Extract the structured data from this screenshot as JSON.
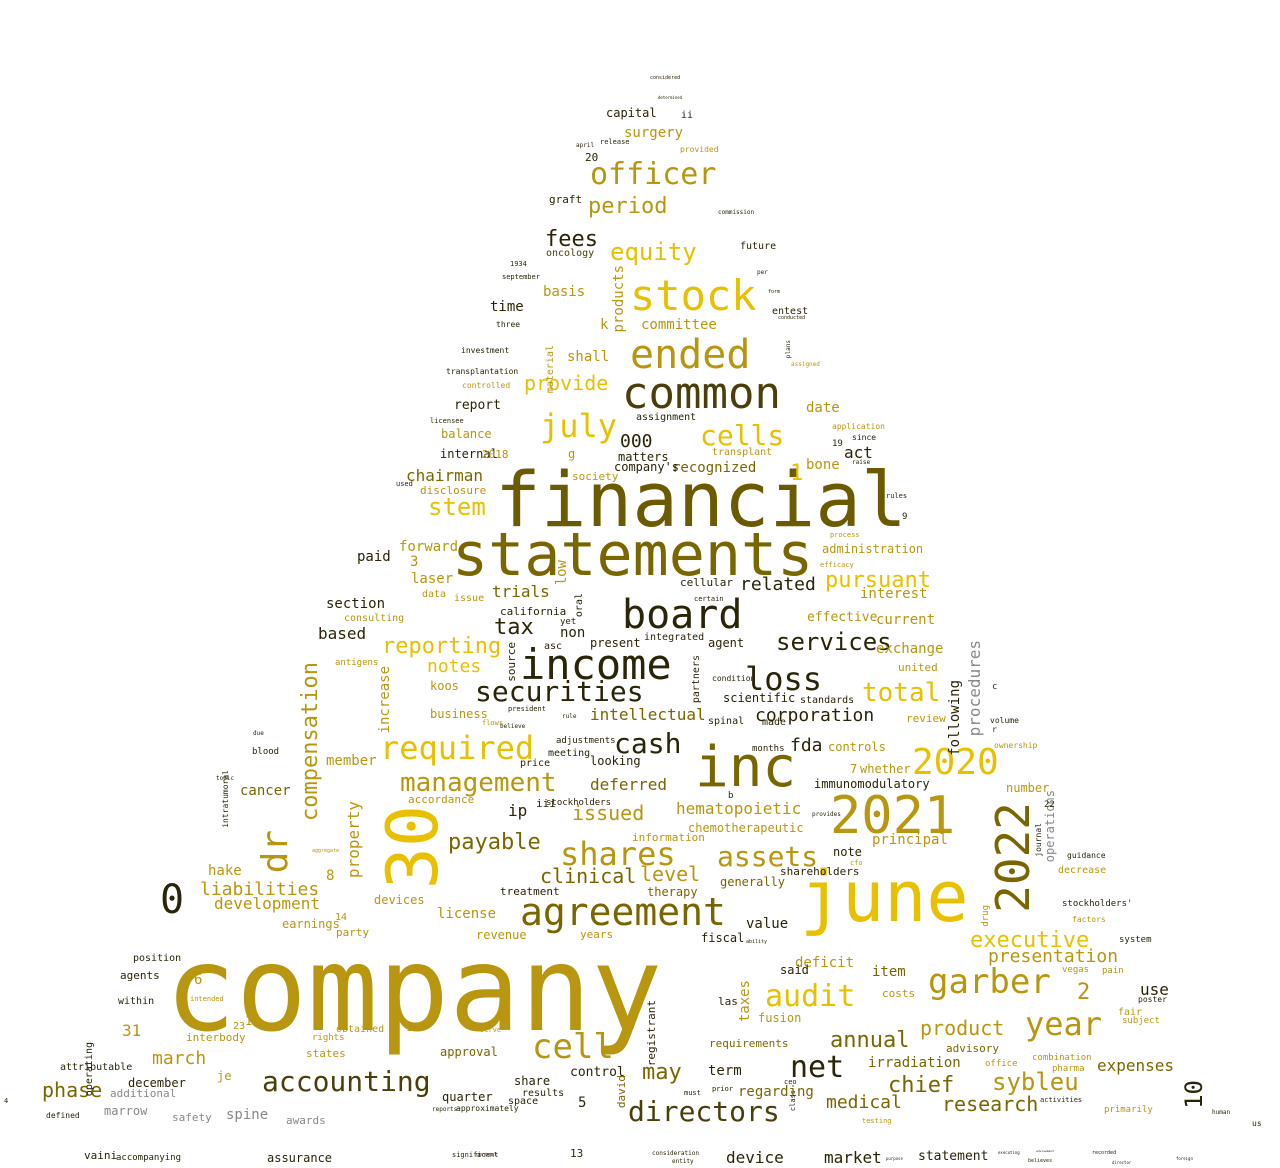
{
  "palette": {
    "gold": "#b8960f",
    "bright_gold": "#e8c000",
    "yellow": "#f2cc10",
    "pale_yellow": "#f5d84a",
    "olive": "#7a6600",
    "dark_olive": "#6b5a00",
    "brown": "#4a3f0a",
    "dark": "#2a2408",
    "black": "#000000",
    "grey": "#888888"
  },
  "words": {
    "company": "company",
    "financial": "financial",
    "statements": "statements",
    "june": "june",
    "inc": "inc",
    "n30": "30",
    "common": "common",
    "income": "income",
    "board": "board",
    "n2021": "2021",
    "n2022": "2022",
    "agreement": "agreement",
    "stock": "stock",
    "ended": "ended",
    "securities": "securities",
    "shares": "shares",
    "garber": "garber",
    "year": "year",
    "accounting": "accounting",
    "cell": "cell",
    "directors": "directors",
    "net": "net",
    "loss": "loss",
    "required": "required",
    "management": "management",
    "officer": "officer",
    "july": "july",
    "cells": "cells",
    "audit": "audit",
    "assets": "assets",
    "dr": "dr",
    "n2020": "2020",
    "sybleu": "sybleu",
    "cash": "cash",
    "compensation": "compensation",
    "n0": "0",
    "n10": "10",
    "total": "total",
    "executive": "executive",
    "services": "services",
    "equity": "equity",
    "period": "period",
    "product": "product",
    "research": "research",
    "chief": "chief",
    "annual": "annual",
    "medical": "medical",
    "stem": "stem",
    "fees": "fees",
    "pursuant": "pursuant",
    "payable": "payable",
    "clinical": "clinical",
    "corporation": "corporation",
    "may": "may",
    "reporting": "reporting",
    "presentation": "presentation",
    "phase": "phase",
    "tax": "tax",
    "march": "march",
    "issued": "issued",
    "liabilities": "liabilities",
    "level": "level",
    "provide": "provide",
    "related": "related",
    "hematopoietic": "hematopoietic",
    "development": "development",
    "notes": "notes",
    "trials": "trials",
    "intellectual": "intellectual",
    "deferred": "deferred",
    "expenses": "expenses",
    "procedures": "procedures",
    "property": "property",
    "exchange": "exchange",
    "fda": "fda",
    "license": "license",
    "n2": "2",
    "n31": "31",
    "use": "use",
    "interest": "interest",
    "principal": "principal",
    "irradiation": "irradiation",
    "item": "item",
    "deficit": "deficit",
    "spine": "spine",
    "shall": "shall",
    "committee": "committee",
    "basis": "basis",
    "products": "products",
    "k": "k",
    "section": "section",
    "based": "based",
    "paid": "paid",
    "chairman": "chairman",
    "ooo": "000",
    "act": "act",
    "date": "date",
    "recognized": "recognized",
    "bone": "bone",
    "n1": "1",
    "report": "report",
    "balance": "balance",
    "internal": "internal",
    "matters": "matters",
    "forward": "forward",
    "laser": "laser",
    "low": "low",
    "increase": "increase",
    "koos": "koos",
    "business": "business",
    "member": "member",
    "cancer": "cancer",
    "hake": "hake",
    "n8": "8",
    "n3": "3",
    "n6": "6",
    "n5": "5",
    "time": "time",
    "surgery": "surgery",
    "capital": "capital",
    "graft": "graft",
    "oncology": "oncology",
    "future": "future",
    "entest": "entest",
    "assignment": "assignment",
    "current": "current",
    "effective": "effective",
    "administration": "administration",
    "cellular": "cellular",
    "immunomodulatory": "immunomodulatory",
    "chemotherapeutic": "chemotherapeutic",
    "therapy": "therapy",
    "generally": "generally",
    "shareholders": "shareholders",
    "note": "note",
    "value": "value",
    "said": "said",
    "fusion": "fusion",
    "requirements": "requirements",
    "advisory": "advisory",
    "regarding": "regarding",
    "term": "term",
    "control": "control",
    "david": "david",
    "quarter": "quarter",
    "approval": "approval",
    "marrow": "marrow",
    "december": "december",
    "additional": "additional",
    "operating": "operating",
    "attributable": "attributable",
    "agents": "agents",
    "within": "within",
    "position": "position",
    "n15": "15",
    "interbody": "interbody",
    "states": "states",
    "awards": "awards",
    "safety": "safety",
    "device": "device",
    "market": "market",
    "statement": "statement",
    "assurance": "assurance",
    "vaini": "vaini",
    "accompanying": "accompanying",
    "n13": "13",
    "taxes": "taxes",
    "registrant": "registrant",
    "las": "las",
    "fiscal": "fiscal",
    "costs": "costs",
    "united": "united",
    "review": "review",
    "following": "following",
    "operations": "operations",
    "number": "number",
    "controls": "controls",
    "whether": "whether",
    "n7": "7",
    "made": "made",
    "months": "months",
    "scientific": "scientific",
    "standards": "standards",
    "agent": "agent",
    "partners": "partners",
    "spinal": "spinal",
    "condition": "condition",
    "looking": "looking",
    "meeting": "meeting",
    "adjustments": "adjustments",
    "price": "price",
    "stockholders": "stockholders",
    "accordance": "accordance",
    "information": "information",
    "ip": "ip",
    "iii": "iii",
    "treatment": "treatment",
    "devices": "devices",
    "earnings": "earnings",
    "party": "party",
    "revenue": "revenue",
    "years": "years",
    "share": "share",
    "results": "results",
    "space": "space",
    "source": "source",
    "present": "present",
    "integrated": "integrated",
    "non": "non",
    "asc": "asc",
    "california": "california",
    "oral": "oral",
    "yet": "yet",
    "disclosure": "disclosure",
    "company_s": "company's",
    "society": "society",
    "g": "g",
    "transplant": "transplant",
    "n2018": "2018",
    "data": "data",
    "issue": "issue",
    "consulting": "consulting",
    "antigens": "antigens",
    "obtained": "obtained",
    "rights": "rights",
    "je": "je",
    "n23": "23",
    "n12": "12",
    "n14": "14",
    "n9": "9",
    "n19": "19",
    "n22": "22",
    "n20": "20",
    "ii": "ii",
    "c": "c",
    "b": "b",
    "r": "r",
    "n4": "4",
    "us": "us",
    "system": "system",
    "poster": "poster",
    "guidance": "guidance",
    "decrease": "decrease",
    "factors": "factors",
    "fair": "fair",
    "subject": "subject",
    "primarily": "primarily",
    "pain": "pain",
    "vegas": "vegas",
    "combination": "combination",
    "office": "office",
    "volume": "volume",
    "ownership": "ownership",
    "journal": "journal",
    "drug": "drug",
    "stockholders_": "stockholders'",
    "pharma": "pharma",
    "activities": "activities",
    "human": "human",
    "three": "three",
    "september": "september",
    "n1934": "1934",
    "investment": "investment",
    "transplantation": "transplantation",
    "controlled": "controlled",
    "licensee": "licensee",
    "used": "used",
    "material": "material",
    "application": "application",
    "since": "since",
    "raise": "raise",
    "rules": "rules",
    "provided": "provided",
    "release": "release",
    "april": "april",
    "commission": "commission",
    "per": "per",
    "form": "form",
    "conducted": "conducted",
    "plans": "plans",
    "assigned": "assigned",
    "considered": "considered",
    "determined": "determined",
    "significant": "significant",
    "topic": "topic",
    "blood": "blood",
    "due": "due",
    "intratumoral": "intratumoral",
    "defined": "defined",
    "general": "general",
    "consideration": "consideration",
    "entity": "entity",
    "purpose": "purpose",
    "executing": "executing",
    "believes": "believes",
    "recorded": "recorded",
    "director": "director",
    "foreign": "foreign",
    "advisement": "advisement",
    "ceo": "ceo",
    "class": "class",
    "must": "must",
    "prior": "prior",
    "ability": "ability",
    "process": "process",
    "efficacy": "efficacy",
    "certain": "certain",
    "president": "president",
    "rule": "rule",
    "believe": "believe",
    "provides": "provides",
    "cfo": "cfo",
    "testing": "testing",
    "reports": "reports",
    "approximately": "approximately",
    "intended": "intended",
    "aggregate": "aggregate",
    "flows": "flows",
    "serve": "serve"
  }
}
